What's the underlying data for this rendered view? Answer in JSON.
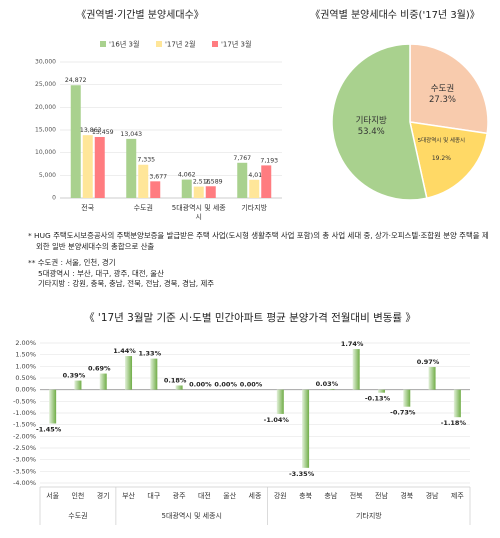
{
  "chart_data": [
    {
      "type": "bar",
      "title": "《권역별·기간별 분양세대수》",
      "categories": [
        "전국",
        "수도권",
        "5대광역시 및 세종시",
        "기타지방"
      ],
      "series": [
        {
          "name": "'16년 3월",
          "color": "#a9d18e",
          "values": [
            24872,
            13043,
            4062,
            7767
          ],
          "value_labels": [
            "24,872",
            "13,043",
            "4,062",
            "7,767"
          ]
        },
        {
          "name": "'17년 2월",
          "color": "#ffe699",
          "values": [
            13863,
            7335,
            2516,
            4012
          ],
          "value_labels": [
            "13,863",
            "7,335",
            "2,516",
            "4,012"
          ]
        },
        {
          "name": "'17년 3월",
          "color": "#ff7c80",
          "values": [
            13459,
            3677,
            2589,
            7193
          ],
          "value_labels": [
            "13,459",
            "3,677",
            "2,589",
            "7,193"
          ]
        }
      ],
      "ylim": [
        0,
        30000
      ],
      "yticks": [
        0,
        {
          "value": 5000,
          "label": "5,000"
        },
        {
          "value": 10000,
          "label": "10,000"
        },
        {
          "value": 15000,
          "label": "15,000"
        },
        {
          "value": 20000,
          "label": "20,000"
        },
        {
          "value": 25000,
          "label": "25,000"
        },
        {
          "value": 30000,
          "label": "30,000"
        }
      ],
      "grid": true
    },
    {
      "type": "pie",
      "title": "《권역별 분양세대수 비중('17년 3월)》",
      "categories": [
        "수도권",
        "5대광역시 및 세종시",
        "기타지방"
      ],
      "values": [
        27.3,
        19.2,
        53.4
      ],
      "value_labels": [
        "27.3%",
        "19.2%",
        "53.4%"
      ],
      "colors": [
        "#f8cbad",
        "#ffd966",
        "#a9d18e"
      ]
    },
    {
      "type": "bar",
      "title": "《 '17년 3월말 기준 시·도별 민간아파트 평균 분양가격 전월대비 변동률 》",
      "categories": [
        "서울",
        "인천",
        "경기",
        "부산",
        "대구",
        "광주",
        "대전",
        "울산",
        "세종",
        "강원",
        "충북",
        "충남",
        "전북",
        "전남",
        "경북",
        "경남",
        "제주"
      ],
      "values": [
        -1.45,
        0.39,
        0.69,
        1.44,
        1.33,
        0.18,
        0,
        0,
        0,
        -1.04,
        -3.35,
        0.03,
        1.74,
        -0.13,
        -0.73,
        0.97,
        -1.18
      ],
      "value_labels": [
        "-1.45%",
        "0.39%",
        "0.69%",
        "1.44%",
        "1.33%",
        "0.18%",
        "0.00%",
        "0.00%",
        "0.00%",
        "-1.04%",
        "-3.35%",
        "0.03%",
        "1.74%",
        "-0.13%",
        "-0.73%",
        "0.97%",
        "-1.18%"
      ],
      "groups": [
        {
          "name": "수도권",
          "count": 3
        },
        {
          "name": "5대광역시 및 세종시",
          "count": 6
        },
        {
          "name": "기타지방",
          "count": 8
        }
      ],
      "color": "#70ad47",
      "ylim": [
        -4,
        2
      ],
      "yticks": [
        {
          "value": -4,
          "label": "-4.00%"
        },
        {
          "value": -3.5,
          "label": "-3.50%"
        },
        {
          "value": -3,
          "label": "-3.00%"
        },
        {
          "value": -2.5,
          "label": "-2.50%"
        },
        {
          "value": -2,
          "label": "-2.00%"
        },
        {
          "value": -1.5,
          "label": "-1.50%"
        },
        {
          "value": -1,
          "label": "-1.00%"
        },
        {
          "value": -0.5,
          "label": "-0.50%"
        },
        {
          "value": 0,
          "label": "0.00%"
        },
        {
          "value": 0.5,
          "label": "0.50%"
        },
        {
          "value": 1,
          "label": "1.00%"
        },
        {
          "value": 1.5,
          "label": "1.50%"
        },
        {
          "value": 2,
          "label": "2.00%"
        }
      ],
      "grid": true
    }
  ],
  "notes": [
    "* HUG 주택도시보증공사의 주택분양보증을 발급받은 주택 사업(도시형 생활주택 사업 포함)의 총 사업 세대 중, 상가·오피스텔·조합원 분양 주택을 제외한 일반 분양세대수의 총합으로 산출",
    "** 수도권 : 서울, 인천, 경기",
    "5대광역시 : 부산, 대구, 광주, 대전, 울산",
    "기타지방 : 강원, 충북, 충남, 전북, 전남, 경북, 경남, 제주"
  ]
}
